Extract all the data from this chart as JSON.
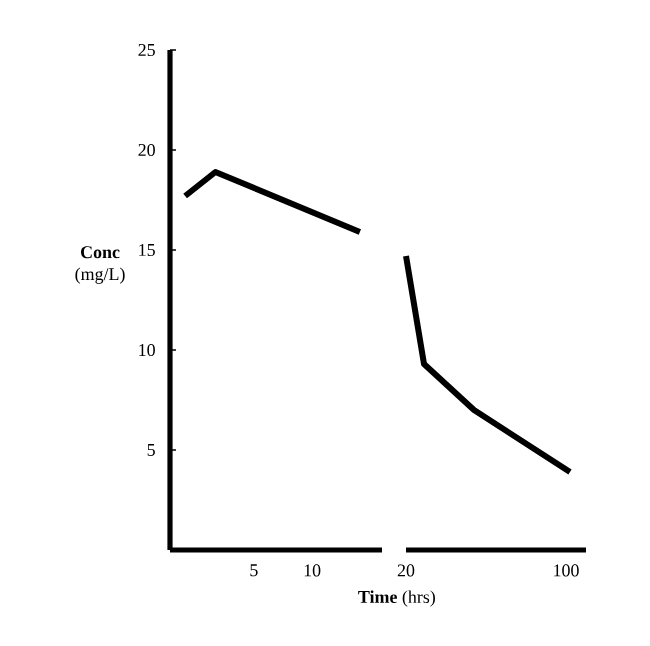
{
  "chart_data": [
    {
      "type": "line",
      "ylabel": "**Conc** (mg/L)",
      "xlabel": "**Time** (hrs)",
      "series": [
        {
          "color": "#000000",
          "x": [
            -0.9,
            1.7,
            14.1
          ],
          "values": [
            17.7,
            18.9,
            15.9
          ]
        }
      ],
      "xlim": [
        -2.2,
        16
      ],
      "xticks": [
        5,
        10
      ],
      "ylim": [
        0,
        25
      ],
      "yticks": [
        5,
        10,
        15,
        20,
        25
      ]
    },
    {
      "type": "line",
      "series": [
        {
          "color": "#000000",
          "x": [
            20,
            29,
            54,
            102
          ],
          "values": [
            14.7,
            9.3,
            7.0,
            3.9
          ]
        }
      ],
      "xlim": [
        20,
        110
      ],
      "xticks": [
        20,
        100
      ],
      "ylim": [
        0,
        25
      ],
      "tick_labels": "x"
    }
  ]
}
